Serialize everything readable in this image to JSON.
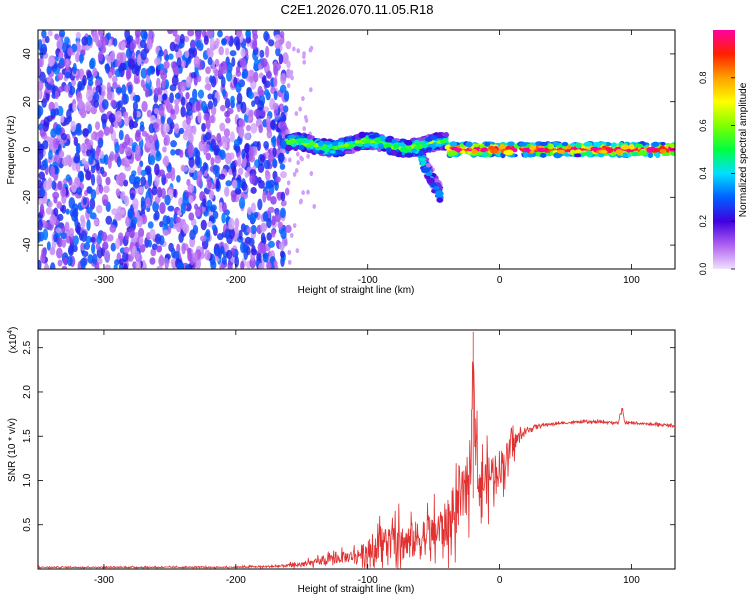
{
  "title": "C2E1.2026.070.11.05.R18",
  "chart_data": [
    {
      "type": "heatmap",
      "xlabel": "Height of straight line (km)",
      "ylabel": "Frequency (Hz)",
      "xlim": [
        -350,
        133
      ],
      "ylim": [
        -50,
        50
      ],
      "xticks": [
        -300,
        -200,
        -100,
        0,
        100
      ],
      "yticks": [
        -40,
        -20,
        0,
        20,
        40
      ],
      "colorbar": {
        "label": "Normalized spectral amplitude",
        "range": [
          0,
          1
        ],
        "ticks": [
          0.0,
          0.2,
          0.4,
          0.6,
          0.8
        ],
        "colormap": [
          "#f0e0ff",
          "#b060f0",
          "#4000e0",
          "#0060ff",
          "#00e0ff",
          "#00ff40",
          "#80ff00",
          "#ffff00",
          "#ffa000",
          "#ff2000",
          "#ff00a0"
        ]
      },
      "regions": [
        {
          "x_range": [
            -350,
            -160
          ],
          "freq_range": [
            -50,
            50
          ],
          "amplitude": 0.05,
          "pattern": "broadband noise"
        },
        {
          "x_range": [
            -160,
            -40
          ],
          "freq_center": 2,
          "freq_width": 6,
          "amplitude": 0.5
        },
        {
          "x_range": [
            -40,
            133
          ],
          "freq_center": 0,
          "freq_width": 5,
          "amplitude": 0.9
        },
        {
          "x_range": [
            -60,
            -45
          ],
          "freq_center": -15,
          "freq_width": 6,
          "amplitude": 0.35,
          "pattern": "descending branch"
        }
      ]
    },
    {
      "type": "line",
      "xlabel": "Height of straight line (km)",
      "ylabel": "SNR (10 * v/v)",
      "yscale_label": "(x10",
      "yscale_exponent": "4",
      "xlim": [
        -350,
        133
      ],
      "ylim": [
        0,
        2.7
      ],
      "xticks": [
        -300,
        -200,
        -100,
        0,
        100
      ],
      "yticks": [
        0.5,
        1.0,
        1.5,
        2.0,
        2.5
      ],
      "series": [
        {
          "color": "#e03030",
          "x": [
            -350,
            -300,
            -250,
            -200,
            -170,
            -150,
            -130,
            -110,
            -100,
            -90,
            -80,
            -70,
            -60,
            -50,
            -45,
            -40,
            -35,
            -30,
            -25,
            -22,
            -20,
            -18,
            -15,
            -10,
            -5,
            0,
            5,
            10,
            15,
            20,
            25,
            30,
            40,
            50,
            60,
            70,
            80,
            90,
            93,
            95,
            100,
            110,
            120,
            133
          ],
          "y": [
            0.02,
            0.02,
            0.02,
            0.02,
            0.03,
            0.05,
            0.1,
            0.15,
            0.2,
            0.3,
            0.3,
            0.3,
            0.35,
            0.4,
            0.45,
            0.5,
            0.6,
            0.75,
            0.9,
            1.2,
            2.6,
            1.3,
            0.95,
            1.0,
            1.1,
            1.15,
            1.25,
            1.4,
            1.5,
            1.55,
            1.6,
            1.62,
            1.64,
            1.65,
            1.66,
            1.66,
            1.66,
            1.65,
            1.8,
            1.65,
            1.65,
            1.64,
            1.63,
            1.62
          ],
          "noise_amplitude": [
            0.01,
            0.01,
            0.01,
            0.01,
            0.02,
            0.04,
            0.08,
            0.12,
            0.2,
            0.3,
            0.35,
            0.35,
            0.35,
            0.35,
            0.4,
            0.45,
            0.45,
            0.5,
            0.55,
            0.6,
            0.1,
            0.5,
            0.5,
            0.45,
            0.4,
            0.35,
            0.3,
            0.2,
            0.1,
            0.06,
            0.04,
            0.03,
            0.02,
            0.02,
            0.02,
            0.02,
            0.02,
            0.02,
            0.05,
            0.02,
            0.02,
            0.02,
            0.02,
            0.02
          ]
        }
      ]
    }
  ]
}
